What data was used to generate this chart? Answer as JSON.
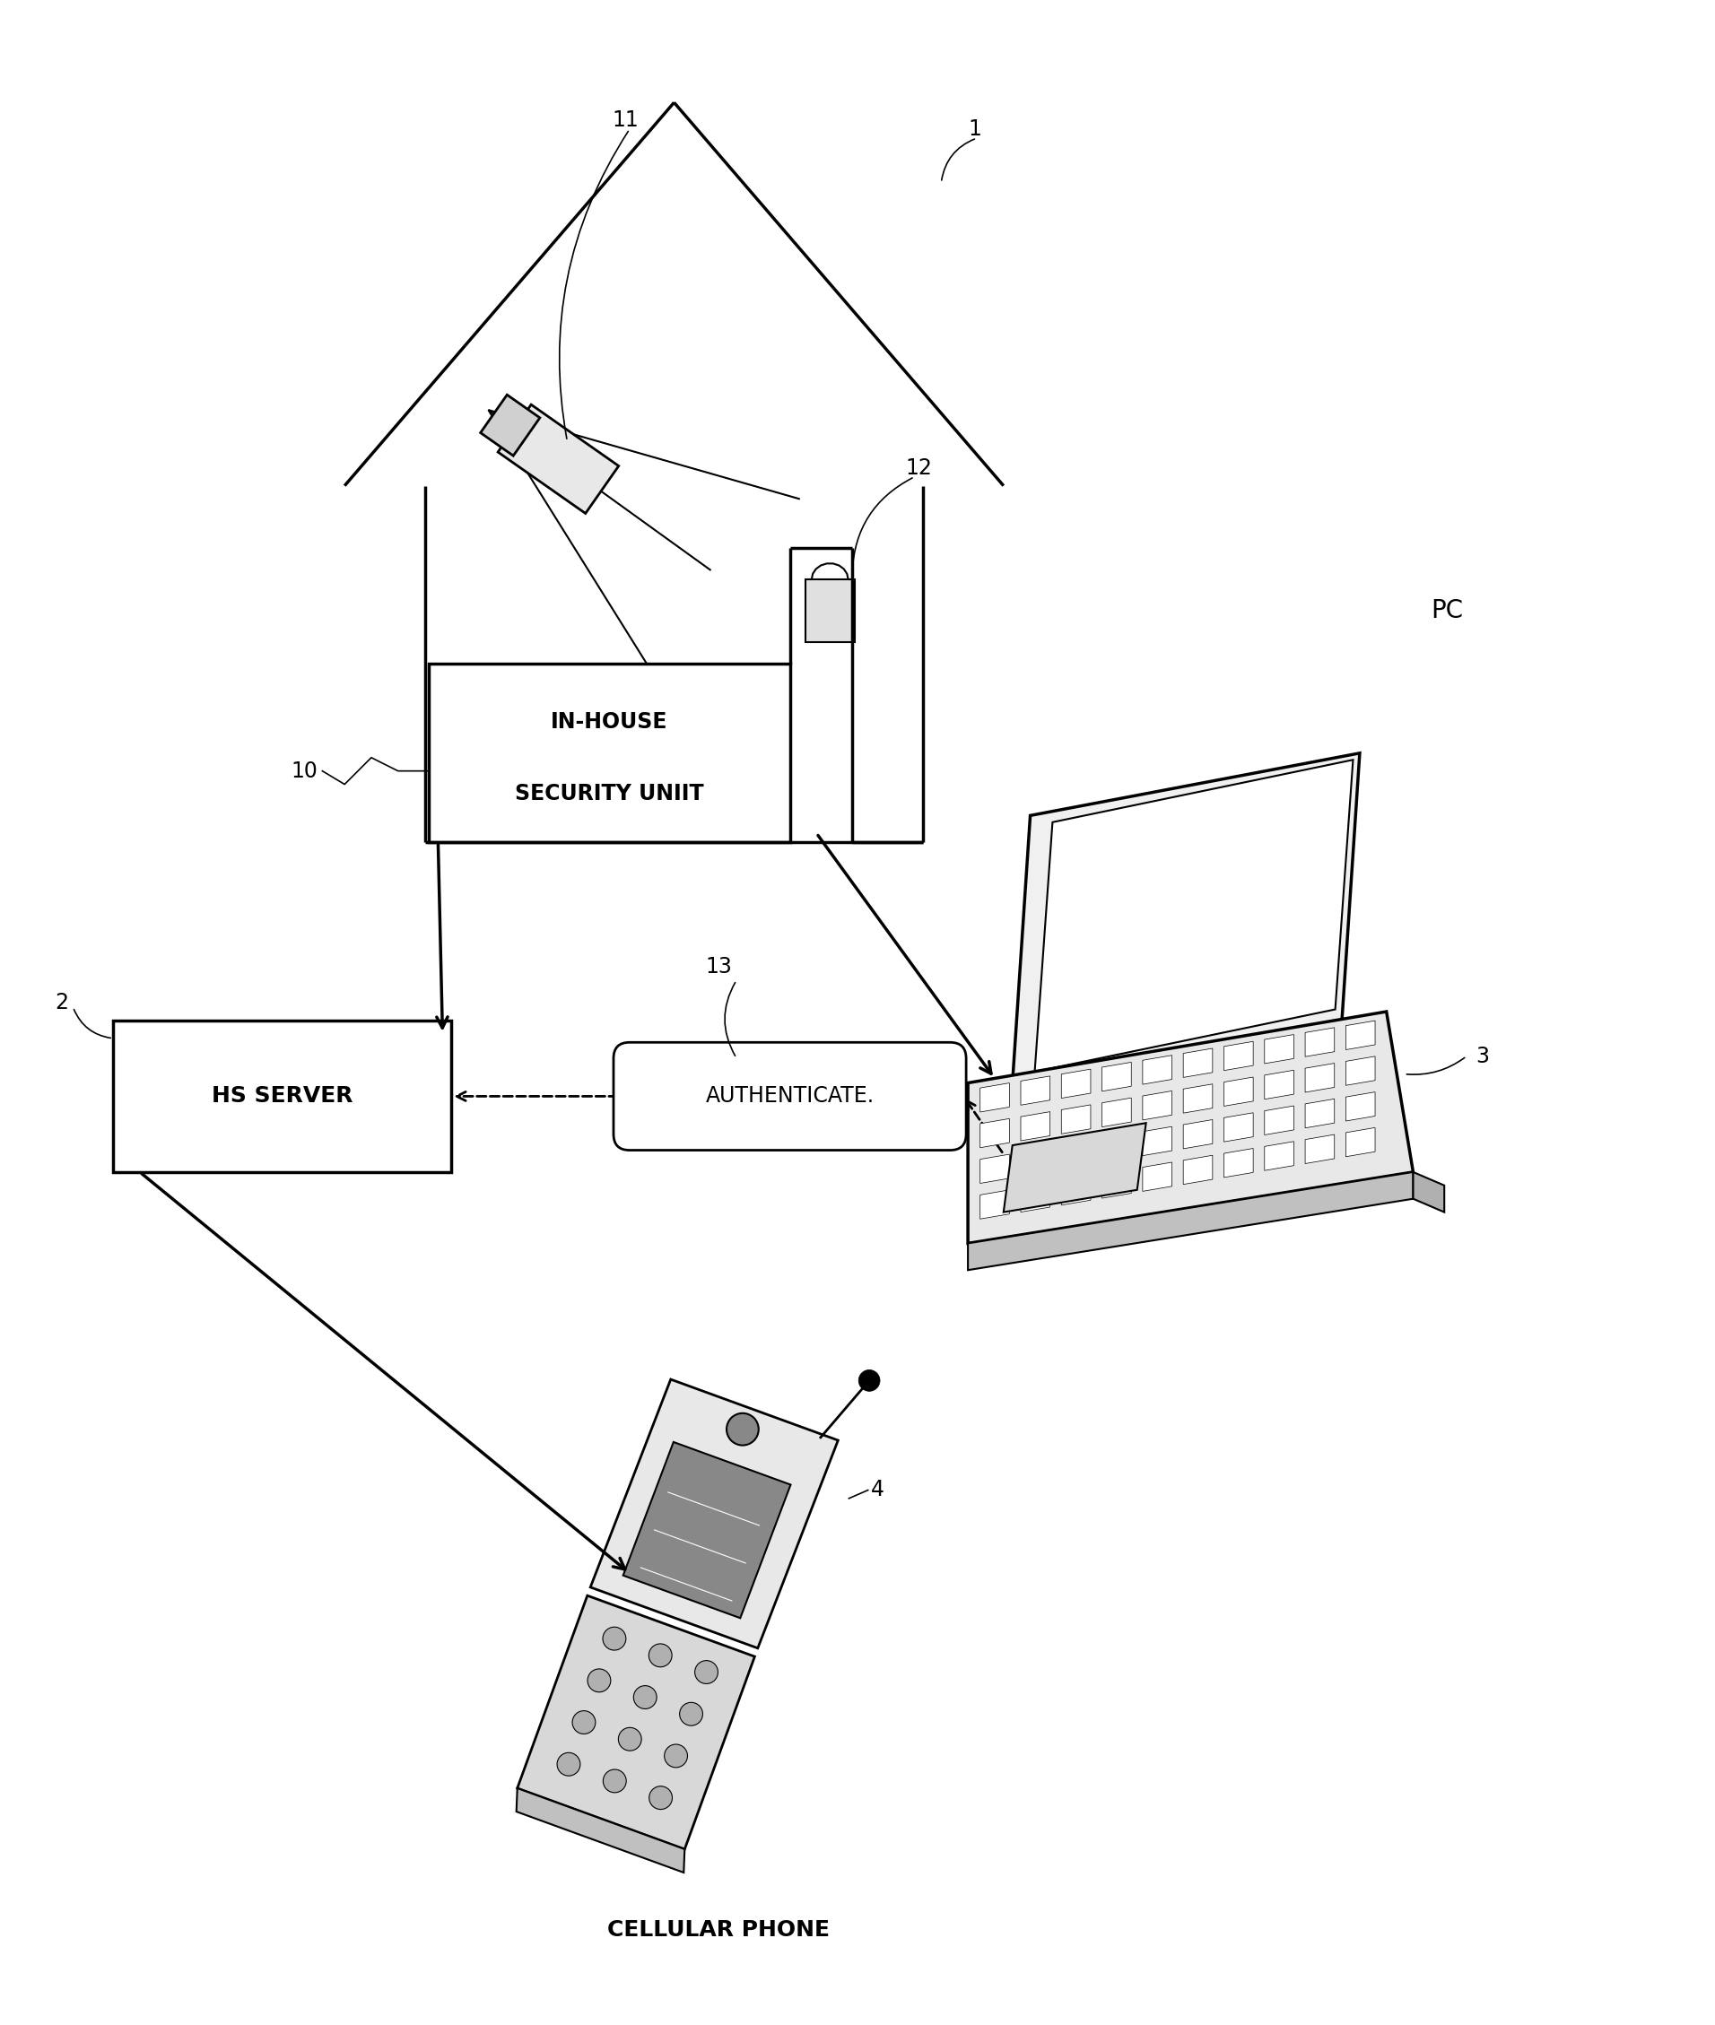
{
  "bg_color": "#ffffff",
  "lc": "#000000",
  "fig_w": 19.12,
  "fig_h": 22.58,
  "labels": {
    "1": "1",
    "2": "2",
    "3": "3",
    "4": "4",
    "10": "10",
    "11": "11",
    "12": "12",
    "13": "13",
    "pc": "PC",
    "phone": "CELLULAR PHONE",
    "sec1": "IN-HOUSE",
    "sec2": "SECURITY UNIIT",
    "server": "HS SERVER",
    "auth": "AUTHENTICATE."
  }
}
